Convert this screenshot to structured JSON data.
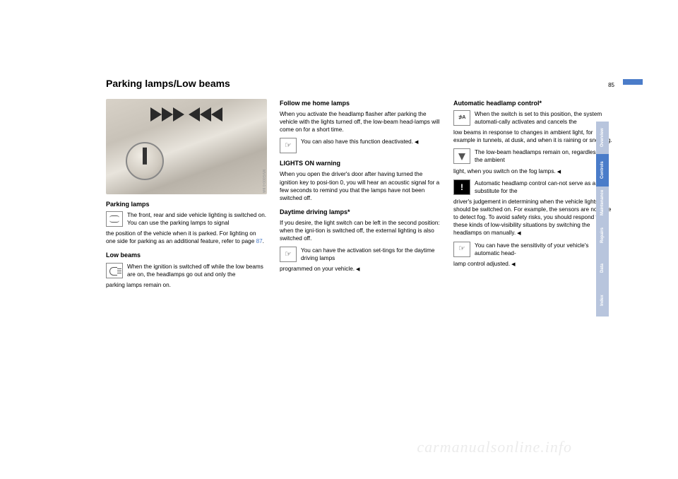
{
  "page": {
    "title": "Parking lamps/Low beams",
    "number": "85"
  },
  "watermark": "carmanualsonline.info",
  "photo_code": "MVG000-0.MA",
  "tabs": [
    {
      "label": "Overview",
      "active": false
    },
    {
      "label": "Controls",
      "active": true
    },
    {
      "label": "Maintenance",
      "active": false
    },
    {
      "label": "Repairs",
      "active": false
    },
    {
      "label": "Data",
      "active": false
    },
    {
      "label": "Index",
      "active": false
    }
  ],
  "col1": {
    "h1": "Parking lamps",
    "p1_indent": "The front, rear and side vehicle lighting is switched on. You can use the parking lamps to signal",
    "p1_rest": "the position of the vehicle when it is parked. For lighting on one side for parking as an additional feature, refer to page ",
    "p1_link": "87",
    "p1_end": ".",
    "h2": "Low beams",
    "p2_indent": "When the ignition is switched off while the low beams are on, the headlamps go out and only the",
    "p2_rest": "parking lamps remain on."
  },
  "col2": {
    "h1": "Follow me home lamps",
    "p1": "When you activate the headlamp flasher after parking the vehicle with the lights turned off, the low-beam head-lamps will come on for a short time.",
    "p2_indent": "You can also have this function deactivated.",
    "h2": "LIGHTS ON warning",
    "p3": "When you open the driver's door after having turned the ignition key to posi-tion 0, you will hear an acoustic signal for a few seconds to remind you that the lamps have not been switched off.",
    "h3": "Daytime driving lamps*",
    "p4": "If you desire, the light switch can be left in the second position: when the igni-tion is switched off, the external lighting is also switched off.",
    "p5_indent": "You can have the activation set-tings for the daytime driving lamps",
    "p5_rest": "programmed on your vehicle."
  },
  "col3": {
    "h1": "Automatic headlamp control*",
    "p1_indent": "When the switch is set to this position, the system automati-cally activates and cancels the",
    "p1_rest": "low beams in response to changes in ambient light, for example in tunnels, at dusk, and when it is raining or snowing.",
    "p2_indent": "The low-beam headlamps remain on, regardless of the ambient",
    "p2_rest": "light, when you switch on the fog lamps.",
    "p3_indent": "Automatic headlamp control can-not serve as a substitute for the",
    "p3_rest": "driver's judgement in determining when the vehicle lights should be switched on. For example, the sensors are not able to detect fog. To avoid safety risks, you should respond to these kinds of low-visibility situations by switching the headlamps on manually.",
    "p4_indent": "You can have the sensitivity of your vehicle's automatic head-",
    "p4_rest": "lamp control adjusted."
  }
}
